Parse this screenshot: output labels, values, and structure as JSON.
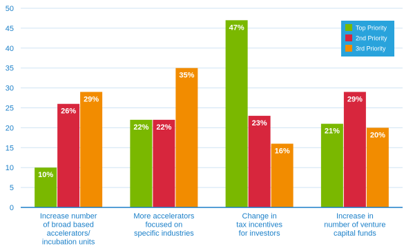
{
  "chart_data": {
    "type": "bar",
    "categories": [
      [
        "Increase number",
        "of broad based",
        "accelerators/",
        "incubation units"
      ],
      [
        "More accelerators",
        "focused on",
        "specific industries"
      ],
      [
        "Change in",
        "tax incentives",
        "for investors"
      ],
      [
        "Increase in",
        "number of venture",
        "capital funds"
      ]
    ],
    "series": [
      {
        "name": "Top Priority",
        "color": "#7ab800",
        "values": [
          10,
          22,
          47,
          21
        ],
        "labels": [
          "10%",
          "22%",
          "47%",
          "21%"
        ]
      },
      {
        "name": "2nd Priority",
        "color": "#d7263d",
        "values": [
          26,
          22,
          23,
          29
        ],
        "labels": [
          "26%",
          "22%",
          "23%",
          "29%"
        ]
      },
      {
        "name": "3rd Priority",
        "color": "#f28c00",
        "values": [
          29,
          35,
          16,
          20
        ],
        "labels": [
          "29%",
          "35%",
          "16%",
          "20%"
        ]
      }
    ],
    "ylim": [
      0,
      50
    ],
    "yticks": [
      "0",
      "5",
      "10",
      "15",
      "20",
      "25",
      "30",
      "35",
      "40",
      "45",
      "50"
    ],
    "grid": true,
    "legend": "top-right",
    "axis_color": "#1a7fc8",
    "legend_bg": "#29a3dc"
  }
}
